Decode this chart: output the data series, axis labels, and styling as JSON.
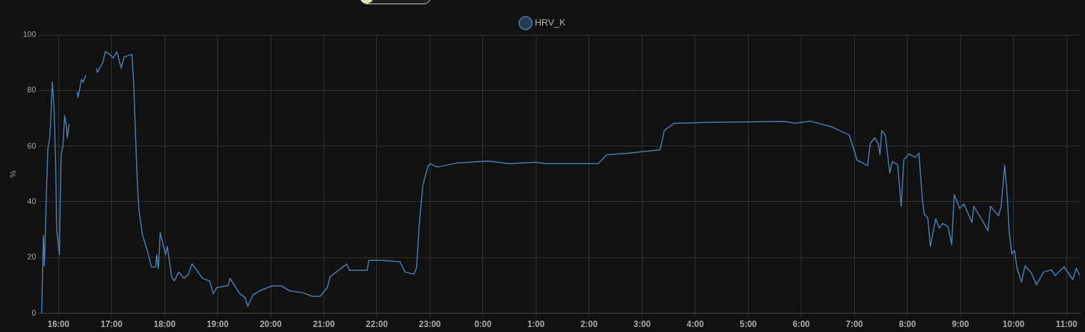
{
  "chart_data": {
    "type": "line",
    "ylabel": "%",
    "x": [
      "2000-01-01T15:41",
      "2000-01-01T15:42",
      "2000-01-01T15:43",
      "2000-01-01T15:44",
      "2000-01-01T15:45",
      "2000-01-01T15:46",
      "2000-01-01T15:48",
      "2000-01-01T15:50",
      "2000-01-01T15:51",
      "2000-01-01T15:53",
      "2000-01-01T15:55",
      "2000-01-01T15:57",
      "2000-01-01T15:58",
      "2000-01-01T16:01",
      "2000-01-01T16:02",
      "2000-01-01T16:03",
      "2000-01-01T16:05",
      "2000-01-01T16:07",
      "2000-01-01T16:09",
      "2000-01-01T16:10",
      "2000-01-01T16:12",
      "2000-01-01T16:17",
      "2000-01-01T16:21",
      "2000-01-01T16:22",
      "2000-01-01T16:26",
      "2000-01-01T16:28",
      "2000-01-01T16:31",
      "2000-01-01T16:37",
      "2000-01-01T16:43",
      "2000-01-01T16:44",
      "2000-01-01T16:50",
      "2000-01-01T16:53",
      "2000-01-01T16:58",
      "2000-01-01T17:02",
      "2000-01-01T17:06",
      "2000-01-01T17:11",
      "2000-01-01T17:14",
      "2000-01-01T17:23",
      "2000-01-01T17:25",
      "2000-01-01T17:27",
      "2000-01-01T17:29",
      "2000-01-01T17:31",
      "2000-01-01T17:35",
      "2000-01-01T17:41",
      "2000-01-01T17:45",
      "2000-01-01T17:50",
      "2000-01-01T17:51",
      "2000-01-01T17:53",
      "2000-01-01T17:55",
      "2000-01-01T17:58",
      "2000-01-01T18:01",
      "2000-01-01T18:03",
      "2000-01-01T18:08",
      "2000-01-01T18:11",
      "2000-01-01T18:16",
      "2000-01-01T18:22",
      "2000-01-01T18:27",
      "2000-01-01T18:31",
      "2000-01-01T18:35",
      "2000-01-01T18:43",
      "2000-01-01T18:51",
      "2000-01-01T18:55",
      "2000-01-01T18:59",
      "2000-01-01T19:12",
      "2000-01-01T19:14",
      "2000-01-01T19:20",
      "2000-01-01T19:25",
      "2000-01-01T19:31",
      "2000-01-01T19:34",
      "2000-01-01T19:40",
      "2000-01-01T19:47",
      "2000-01-01T20:01",
      "2000-01-01T20:12",
      "2000-01-01T20:22",
      "2000-01-01T20:36",
      "2000-01-01T20:47",
      "2000-01-01T20:56",
      "2000-01-01T21:04",
      "2000-01-01T21:07",
      "2000-01-01T21:14",
      "2000-01-01T21:26",
      "2000-01-01T21:29",
      "2000-01-01T21:38",
      "2000-01-01T21:49",
      "2000-01-01T21:51",
      "2000-01-01T22:07",
      "2000-01-01T22:26",
      "2000-01-01T22:32",
      "2000-01-01T22:42",
      "2000-01-01T22:45",
      "2000-01-01T22:48",
      "2000-01-01T22:52",
      "2000-01-01T22:58",
      "2000-01-01T23:01",
      "2000-01-01T23:07",
      "2000-01-01T23:10",
      "2000-01-01T23:31",
      "2000-01-02T00:06",
      "2000-01-02T00:30",
      "2000-01-02T00:59",
      "2000-01-02T01:13",
      "2000-01-02T02:10",
      "2000-01-02T02:20",
      "2000-01-02T02:44",
      "2000-01-02T03:20",
      "2000-01-02T03:22",
      "2000-01-02T03:25",
      "2000-01-02T03:36",
      "2000-01-02T04:19",
      "2000-01-02T04:59",
      "2000-01-02T05:40",
      "2000-01-02T05:53",
      "2000-01-02T06:10",
      "2000-01-02T06:34",
      "2000-01-02T06:44",
      "2000-01-02T06:54",
      "2000-01-02T07:01",
      "2000-01-02T07:03",
      "2000-01-02T07:11",
      "2000-01-02T07:15",
      "2000-01-02T07:18",
      "2000-01-02T07:23",
      "2000-01-02T07:27",
      "2000-01-02T07:29",
      "2000-01-02T07:31",
      "2000-01-02T07:35",
      "2000-01-02T07:40",
      "2000-01-02T07:43",
      "2000-01-02T07:49",
      "2000-01-02T07:53",
      "2000-01-02T07:56",
      "2000-01-02T08:02",
      "2000-01-02T08:09",
      "2000-01-02T08:13",
      "2000-01-02T08:17",
      "2000-01-02T08:19",
      "2000-01-02T08:23",
      "2000-01-02T08:26",
      "2000-01-02T08:32",
      "2000-01-02T08:36",
      "2000-01-02T08:40",
      "2000-01-02T08:46",
      "2000-01-02T08:50",
      "2000-01-02T08:53",
      "2000-01-02T08:59",
      "2000-01-02T09:04",
      "2000-01-02T09:13",
      "2000-01-02T09:15",
      "2000-01-02T09:26",
      "2000-01-02T09:31",
      "2000-01-02T09:34",
      "2000-01-02T09:43",
      "2000-01-02T09:46",
      "2000-01-02T09:50",
      "2000-01-02T09:53",
      "2000-01-02T09:55",
      "2000-01-02T09:58",
      "2000-01-02T10:01",
      "2000-01-02T10:04",
      "2000-01-02T10:09",
      "2000-01-02T10:13",
      "2000-01-02T10:20",
      "2000-01-02T10:26",
      "2000-01-02T10:34",
      "2000-01-02T10:43",
      "2000-01-02T10:47",
      "2000-01-02T10:57",
      "2000-01-02T11:07",
      "2000-01-02T11:11",
      "2000-01-02T11:15"
    ],
    "series": [
      {
        "name": "HRV_K",
        "color": "#4a7eb0",
        "values": [
          0,
          15,
          28,
          17,
          27,
          40,
          59,
          63,
          68,
          83,
          74,
          50,
          30,
          21,
          40,
          57,
          60,
          71,
          67,
          63,
          68,
          null,
          79.5,
          77.5,
          84,
          83,
          85.6,
          null,
          88,
          86.5,
          90,
          94,
          93,
          91.7,
          94,
          88,
          92,
          93,
          83,
          65,
          48,
          37,
          28,
          22,
          16.6,
          16.6,
          21,
          16,
          29,
          25,
          21,
          24,
          13,
          11.6,
          14.8,
          12.5,
          14,
          17.7,
          16,
          12.5,
          11.6,
          7,
          9.2,
          10,
          12.5,
          9.5,
          7,
          5.6,
          2.5,
          6.6,
          8,
          9.8,
          9.8,
          8,
          7.4,
          6.1,
          6.1,
          9.2,
          13,
          14.8,
          17.7,
          15.4,
          15.4,
          15.4,
          19,
          19,
          18.5,
          14.8,
          14,
          16.5,
          32,
          46,
          53,
          53.7,
          52.6,
          52.6,
          54,
          54.7,
          53.7,
          54.2,
          53.7,
          53.7,
          56.9,
          57.5,
          58.7,
          61,
          65.6,
          68.2,
          68.6,
          68.7,
          68.9,
          68.3,
          69,
          67,
          65.5,
          64.1,
          57.3,
          55,
          53.7,
          53,
          61,
          63,
          61,
          57,
          65.6,
          64,
          50.4,
          54.5,
          53.3,
          38.4,
          55.2,
          57.2,
          56,
          57.5,
          40.7,
          35.6,
          34.3,
          24,
          34,
          30.6,
          32.3,
          31,
          24.6,
          42.6,
          37.6,
          39.3,
          32.6,
          38.4,
          32.6,
          29.6,
          38.4,
          35,
          38.4,
          53.2,
          41.8,
          29.6,
          21.3,
          22.6,
          16.2,
          11.2,
          17,
          14.6,
          10.2,
          14.8,
          15.6,
          13.5,
          16.7,
          12.1,
          16.2,
          13.5
        ]
      }
    ],
    "xlim": [
      "2000-01-01T15:37",
      "2000-01-02T11:16"
    ],
    "xticks": [
      {
        "value": "2000-01-01T16:00",
        "label": "16:00"
      },
      {
        "value": "2000-01-01T17:00",
        "label": "17:00"
      },
      {
        "value": "2000-01-01T18:00",
        "label": "18:00"
      },
      {
        "value": "2000-01-01T19:00",
        "label": "19:00"
      },
      {
        "value": "2000-01-01T20:00",
        "label": "20:00"
      },
      {
        "value": "2000-01-01T21:00",
        "label": "21:00"
      },
      {
        "value": "2000-01-01T22:00",
        "label": "22:00"
      },
      {
        "value": "2000-01-01T23:00",
        "label": "23:00"
      },
      {
        "value": "2000-01-02T00:00",
        "label": "0:00"
      },
      {
        "value": "2000-01-02T01:00",
        "label": "1:00"
      },
      {
        "value": "2000-01-02T02:00",
        "label": "2:00"
      },
      {
        "value": "2000-01-02T03:00",
        "label": "3:00"
      },
      {
        "value": "2000-01-02T04:00",
        "label": "4:00"
      },
      {
        "value": "2000-01-02T05:00",
        "label": "5:00"
      },
      {
        "value": "2000-01-02T06:00",
        "label": "6:00"
      },
      {
        "value": "2000-01-02T07:00",
        "label": "7:00"
      },
      {
        "value": "2000-01-02T08:00",
        "label": "8:00"
      },
      {
        "value": "2000-01-02T09:00",
        "label": "9:00"
      },
      {
        "value": "2000-01-02T10:00",
        "label": "10:00"
      },
      {
        "value": "2000-01-02T11:00",
        "label": "11:00"
      }
    ],
    "ylim": [
      0,
      100
    ],
    "yticks": [
      0,
      20,
      40,
      60,
      80,
      100
    ],
    "grid": true,
    "legend": "top",
    "marker": "none",
    "line_style": "solid"
  }
}
